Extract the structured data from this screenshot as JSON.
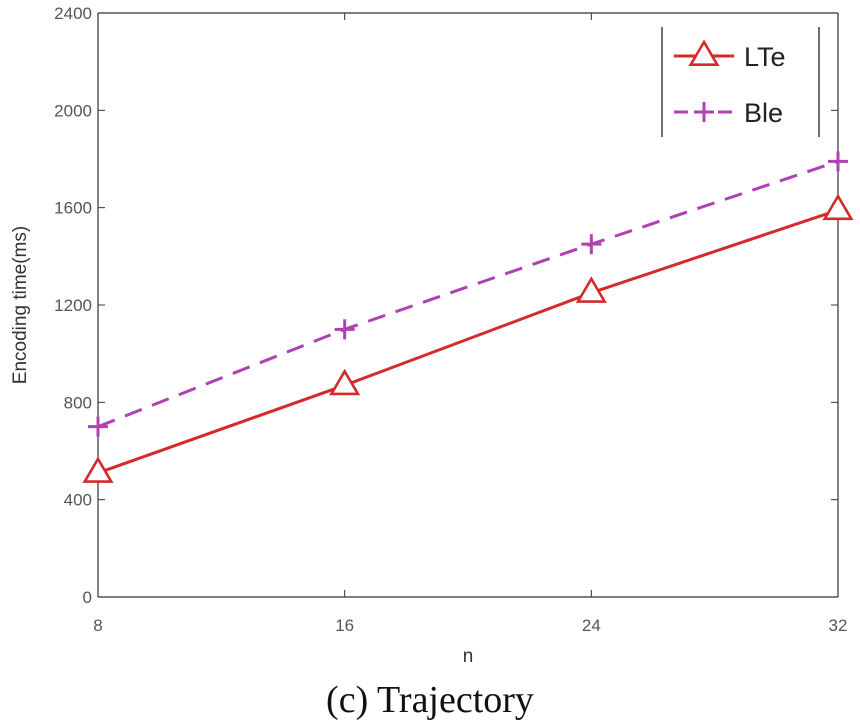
{
  "chart_data": {
    "type": "line",
    "title": "",
    "caption": "(c) Trajectory",
    "xlabel": "n",
    "ylabel": "Encoding time(ms)",
    "x": [
      8,
      16,
      24,
      32
    ],
    "xlim": [
      8,
      32
    ],
    "ylim": [
      0,
      2400
    ],
    "xticks": [
      8,
      16,
      24,
      32
    ],
    "yticks": [
      0,
      400,
      800,
      1200,
      1600,
      2000,
      2400
    ],
    "grid": false,
    "legend_position": "top-right",
    "series": [
      {
        "name": "LTe",
        "values": [
          510,
          870,
          1250,
          1590
        ],
        "color": "#d42a2a",
        "marker": "triangle",
        "line_style": "solid"
      },
      {
        "name": "Ble",
        "values": [
          700,
          1100,
          1450,
          1790
        ],
        "color": "#b040b4",
        "marker": "plus",
        "line_style": "dashed"
      }
    ]
  }
}
